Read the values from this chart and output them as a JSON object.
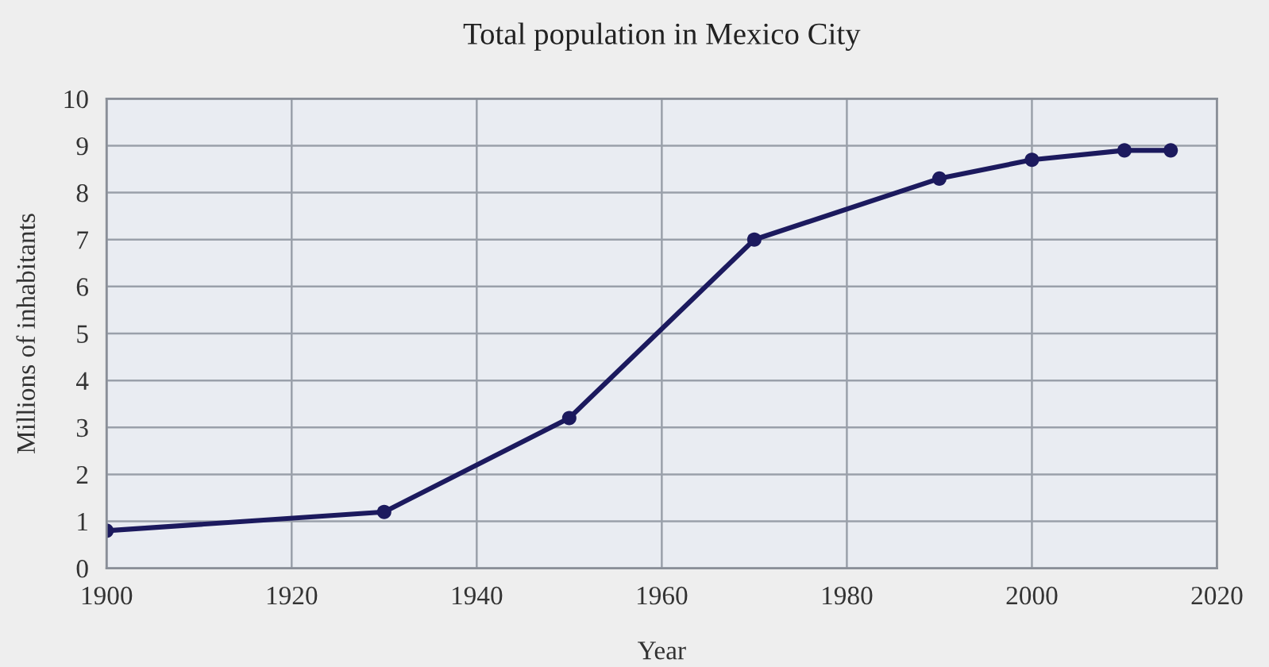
{
  "chart_data": {
    "type": "line",
    "title": "Total population in Mexico City",
    "xlabel": "Year",
    "ylabel": "Millions of inhabitants",
    "x": [
      1900,
      1930,
      1950,
      1970,
      1990,
      2000,
      2010,
      2015
    ],
    "series": [
      {
        "color": "#1c1a5e",
        "values": [
          0.8,
          1.2,
          3.2,
          7.0,
          8.3,
          8.7,
          8.9,
          8.9
        ]
      }
    ],
    "xlim": [
      1900,
      2020
    ],
    "xticks": [
      1900,
      1920,
      1940,
      1960,
      1980,
      2000,
      2020
    ],
    "ylim": [
      0,
      10
    ],
    "yticks": [
      0,
      1,
      2,
      3,
      4,
      5,
      6,
      7,
      8,
      9,
      10
    ],
    "grid": true,
    "marker": "circle",
    "line_style": "solid"
  }
}
